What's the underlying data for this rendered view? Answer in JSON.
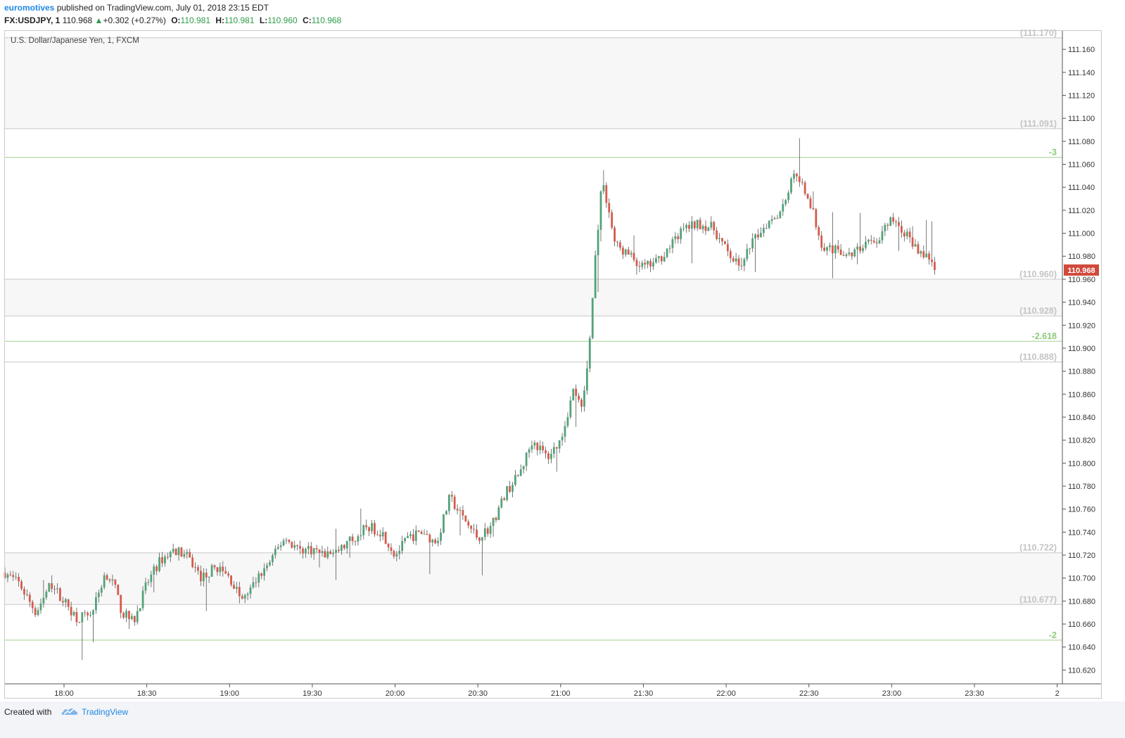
{
  "header": {
    "author": "euromotives",
    "published_text": "published on TradingView.com, July 01, 2018 23:15 EDT",
    "symbol": "FX:USDJPY, 1",
    "last_price": "110.968",
    "change": "+0.302 (+0.27%)",
    "open_label": "O:",
    "open": "110.981",
    "high_label": "H:",
    "high": "110.981",
    "low_label": "L:",
    "low": "110.960",
    "close_label": "C:",
    "close": "110.968"
  },
  "footer": {
    "created_with": "Created with",
    "brand": "TradingView"
  },
  "colors": {
    "up": "#53a27a",
    "down": "#d65a4a",
    "fib": "#9fd08b",
    "level": "#c8c8c8",
    "price_tag": "#d0493a"
  },
  "chart_data": {
    "type": "candlestick",
    "title": "U.S. Dollar/Japanese Yen, 1, FXCM",
    "ylim": [
      110.608,
      111.176
    ],
    "y_ticks": [
      "110.620",
      "110.640",
      "110.660",
      "110.680",
      "110.700",
      "110.720",
      "110.740",
      "110.760",
      "110.780",
      "110.800",
      "110.820",
      "110.840",
      "110.860",
      "110.880",
      "110.900",
      "110.920",
      "110.940",
      "110.960",
      "110.980",
      "111.000",
      "111.020",
      "111.040",
      "111.060",
      "111.080",
      "111.100",
      "111.120",
      "111.140",
      "111.160"
    ],
    "x_ticks": [
      "18:00",
      "18:30",
      "19:00",
      "19:30",
      "20:00",
      "20:30",
      "21:00",
      "21:30",
      "22:00",
      "22:30",
      "23:00",
      "23:30",
      "2"
    ],
    "current_price": "110.968",
    "levels": [
      {
        "value": 111.17,
        "label": "(111.170)",
        "kind": "gray"
      },
      {
        "value": 111.091,
        "label": "(111.091)",
        "kind": "gray"
      },
      {
        "value": 111.066,
        "label": "-3",
        "kind": "fib"
      },
      {
        "value": 110.96,
        "label": "(110.960)",
        "kind": "gray"
      },
      {
        "value": 110.928,
        "label": "(110.928)",
        "kind": "gray"
      },
      {
        "value": 110.906,
        "label": "-2.618",
        "kind": "fib"
      },
      {
        "value": 110.888,
        "label": "(110.888)",
        "kind": "gray"
      },
      {
        "value": 110.722,
        "label": "(110.722)",
        "kind": "gray"
      },
      {
        "value": 110.677,
        "label": "(110.677)",
        "kind": "gray"
      },
      {
        "value": 110.646,
        "label": "-2",
        "kind": "fib"
      }
    ],
    "shaded_zones": [
      [
        110.96,
        110.928
      ],
      [
        111.17,
        111.091
      ],
      [
        110.722,
        110.677
      ]
    ],
    "close_path": [
      [
        17.64,
        110.705
      ],
      [
        17.73,
        110.695
      ],
      [
        17.83,
        110.67
      ],
      [
        17.92,
        110.695
      ],
      [
        18.0,
        110.68
      ],
      [
        18.08,
        110.665
      ],
      [
        18.17,
        110.67
      ],
      [
        18.25,
        110.705
      ],
      [
        18.3,
        110.695
      ],
      [
        18.35,
        110.67
      ],
      [
        18.42,
        110.662
      ],
      [
        18.5,
        110.695
      ],
      [
        18.58,
        110.715
      ],
      [
        18.67,
        110.725
      ],
      [
        18.75,
        110.718
      ],
      [
        18.83,
        110.7
      ],
      [
        18.92,
        110.71
      ],
      [
        19.0,
        110.7
      ],
      [
        19.08,
        110.68
      ],
      [
        19.17,
        110.7
      ],
      [
        19.25,
        110.715
      ],
      [
        19.33,
        110.735
      ],
      [
        19.42,
        110.725
      ],
      [
        19.5,
        110.725
      ],
      [
        19.58,
        110.72
      ],
      [
        19.67,
        110.725
      ],
      [
        19.75,
        110.735
      ],
      [
        19.83,
        110.745
      ],
      [
        19.92,
        110.74
      ],
      [
        20.0,
        110.72
      ],
      [
        20.08,
        110.735
      ],
      [
        20.17,
        110.74
      ],
      [
        20.25,
        110.73
      ],
      [
        20.33,
        110.77
      ],
      [
        20.42,
        110.75
      ],
      [
        20.5,
        110.735
      ],
      [
        20.58,
        110.745
      ],
      [
        20.67,
        110.775
      ],
      [
        20.75,
        110.79
      ],
      [
        20.83,
        110.82
      ],
      [
        20.92,
        110.805
      ],
      [
        21.0,
        110.82
      ],
      [
        21.08,
        110.865
      ],
      [
        21.13,
        110.845
      ],
      [
        21.17,
        110.895
      ],
      [
        21.21,
        110.98
      ],
      [
        21.25,
        111.045
      ],
      [
        21.29,
        111.02
      ],
      [
        21.33,
        110.99
      ],
      [
        21.42,
        110.98
      ],
      [
        21.5,
        110.97
      ],
      [
        21.58,
        110.975
      ],
      [
        21.67,
        110.99
      ],
      [
        21.75,
        111.005
      ],
      [
        21.83,
        111.008
      ],
      [
        21.92,
        111.005
      ],
      [
        22.0,
        110.985
      ],
      [
        22.08,
        110.97
      ],
      [
        22.17,
        110.995
      ],
      [
        22.25,
        111.01
      ],
      [
        22.33,
        111.02
      ],
      [
        22.42,
        111.055
      ],
      [
        22.5,
        111.03
      ],
      [
        22.58,
        110.99
      ],
      [
        22.67,
        110.985
      ],
      [
        22.75,
        110.98
      ],
      [
        22.83,
        110.99
      ],
      [
        22.92,
        110.995
      ],
      [
        23.0,
        111.012
      ],
      [
        23.08,
        111.0
      ],
      [
        23.17,
        110.985
      ],
      [
        23.25,
        110.975
      ],
      [
        23.27,
        110.968
      ]
    ]
  }
}
